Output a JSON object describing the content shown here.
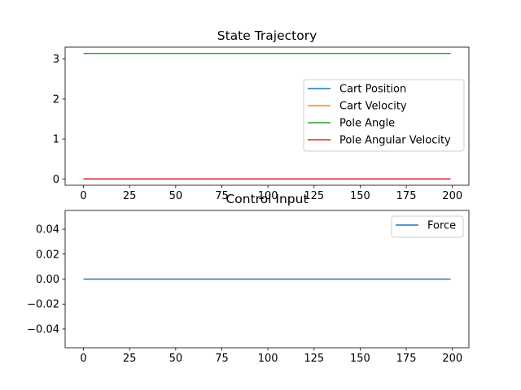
{
  "chart_data": [
    {
      "type": "line",
      "title": "State Trajectory",
      "xlabel": "",
      "ylabel": "",
      "xlim": [
        -9.95,
        208.95
      ],
      "ylim": [
        -0.157,
        3.299
      ],
      "xticks": [
        0,
        25,
        50,
        75,
        100,
        125,
        150,
        175,
        200
      ],
      "yticks": [
        0,
        1,
        2,
        3
      ],
      "grid": false,
      "legend_position": "center-right",
      "x": [
        0,
        199
      ],
      "series": [
        {
          "name": "Cart Position",
          "color": "#1f77b4",
          "values": [
            0,
            0
          ]
        },
        {
          "name": "Cart Velocity",
          "color": "#ff7f0e",
          "values": [
            0,
            0
          ]
        },
        {
          "name": "Pole Angle",
          "color": "#2ca02c",
          "values": [
            3.14159,
            3.14159
          ]
        },
        {
          "name": "Pole Angular Velocity",
          "color": "#d62728",
          "values": [
            0,
            0
          ]
        }
      ]
    },
    {
      "type": "line",
      "title": "Control Input",
      "xlabel": "",
      "ylabel": "",
      "xlim": [
        -9.95,
        208.95
      ],
      "ylim": [
        -0.055,
        0.055
      ],
      "xticks": [
        0,
        25,
        50,
        75,
        100,
        125,
        150,
        175,
        200
      ],
      "yticks": [
        -0.04,
        -0.02,
        0.0,
        0.02,
        0.04
      ],
      "ytick_labels": [
        "−0.04",
        "−0.02",
        "0.00",
        "0.02",
        "0.04"
      ],
      "grid": false,
      "legend_position": "top-right",
      "x": [
        0,
        199
      ],
      "series": [
        {
          "name": "Force",
          "color": "#1f77b4",
          "values": [
            0,
            0
          ]
        }
      ]
    }
  ]
}
